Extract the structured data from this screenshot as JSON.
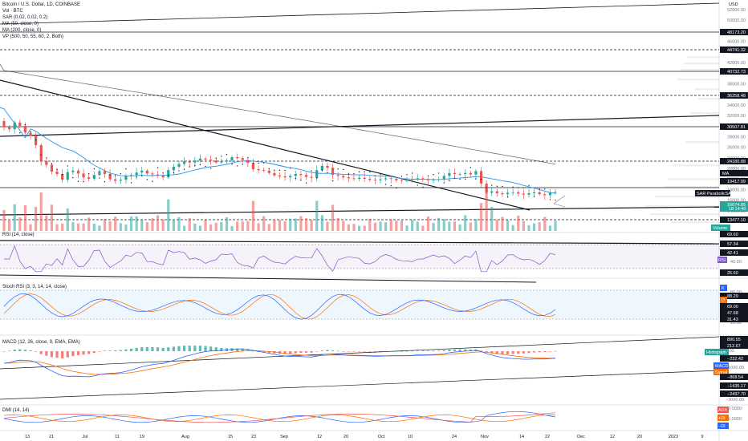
{
  "header": {
    "title": "Bitcoin / U.S. Dollar, 1D, COINBASE",
    "indicators": [
      "Vol · BTC",
      "SAR (0.02, 0.02, 0.2)",
      "MA (50, close, 0)",
      "MA (200, close, 0)",
      "VP (500, 50, 55, 60, 2, Both)"
    ],
    "currency": "USD"
  },
  "panes": {
    "rsi": "RSI (14, close)",
    "stoch": "Stoch RSI (3, 3, 14, 14, close)",
    "macd": "MACD (12, 26, close, 9, EMA, EMA)",
    "dmi": "DMI (14, 14)"
  },
  "axis": {
    "price_ticks": [
      "52000.00",
      "50000.00",
      "48000.00",
      "46000.00",
      "44000.00",
      "42000.00",
      "40000.00",
      "38000.00",
      "36000.00",
      "34000.00",
      "32000.00",
      "30000.00",
      "28000.00",
      "26000.00",
      "24000.00",
      "22000.00",
      "20000.00",
      "18000.00",
      "16000.00",
      "14000.00",
      "12000.00"
    ],
    "rsi_ticks": [
      "80.00",
      "40.00"
    ],
    "stoch_ticks": [
      "80.00",
      "20.00"
    ],
    "macd_ticks": [
      "0.00",
      "−1000.00",
      "−2000.00",
      "−3000.00"
    ],
    "dmi_ticks": [
      "50.0000",
      "25.0000"
    ],
    "time_ticks": [
      "13",
      "21",
      "Jul",
      "11",
      "19",
      "Aug",
      "15",
      "23",
      "Sep",
      "12",
      "20",
      "Oct",
      "10",
      "24",
      "Nov",
      "14",
      "22",
      "Dec",
      "12",
      "20",
      "2023",
      "9"
    ]
  },
  "tags": {
    "price_levels": [
      {
        "value": "48173.20",
        "color": "#131722"
      },
      {
        "value": "44741.32",
        "color": "#131722"
      },
      {
        "value": "40732.73",
        "color": "#131722"
      },
      {
        "value": "36258.48",
        "color": "#131722"
      },
      {
        "value": "30507.81",
        "color": "#131722"
      },
      {
        "value": "24180.88",
        "color": "#131722"
      },
      {
        "value": "19417.09",
        "color": "#131722"
      },
      {
        "value": "13477.10",
        "color": "#131722"
      },
      {
        "value": "16674.85",
        "color": "#26a69a"
      }
    ],
    "ma_label": "MA",
    "sar_label": "SAR ParabolicSAR",
    "countdown": "18:14:40",
    "volume_label": "Volume",
    "rsi_levels": [
      "69.60",
      "57.34",
      "42.41",
      "25.60"
    ],
    "rsi_current": "RSI",
    "stoch_levels": [
      "88.29",
      "69.00",
      "47.68",
      "31.43"
    ],
    "stoch_k": "K",
    "stoch_d": "D",
    "macd_levels": [
      "890.55",
      "212.67",
      "−232.42",
      "−868.54",
      "−1435.17",
      "−2497.70"
    ],
    "macd_tags": [
      "Histogram",
      "MACD",
      "Signal"
    ],
    "dmi_tags": [
      "ADX",
      "+DI",
      "−DI"
    ]
  },
  "colors": {
    "up": "#26a69a",
    "down": "#ef5350",
    "ma50": "#2196f3",
    "ma200": "#131722",
    "rsi": "#7e57c2",
    "stoch_k": "#2962ff",
    "stoch_d": "#ff6d00",
    "adx": "#ef5350",
    "plus_di": "#ff6d00",
    "minus_di": "#2962ff"
  },
  "chart_data": {
    "type": "candlestick",
    "symbol": "BTCUSD",
    "interval": "1D",
    "ylim": [
      12000,
      53000
    ],
    "time_range": [
      "June",
      "January 2023"
    ],
    "close": [
      30200,
      29800,
      31200,
      30500,
      29100,
      28400,
      26500,
      23200,
      22400,
      21000,
      20500,
      19300,
      20900,
      21200,
      20600,
      19800,
      19500,
      20300,
      21100,
      20500,
      19400,
      19100,
      19300,
      20100,
      20300,
      20800,
      21200,
      20600,
      20400,
      20200,
      19800,
      21300,
      22000,
      22600,
      23100,
      22900,
      23300,
      23700,
      23500,
      23300,
      22900,
      23100,
      23300,
      24000,
      23800,
      23400,
      22800,
      21500,
      21300,
      21200,
      20700,
      20200,
      20000,
      19800,
      20100,
      20500,
      20300,
      19900,
      19700,
      21300,
      22200,
      21800,
      20300,
      20100,
      19800,
      19600,
      19500,
      19700,
      19500,
      19300,
      19200,
      19400,
      19600,
      19500,
      19200,
      19100,
      19300,
      19400,
      19600,
      19400,
      19200,
      19300,
      19400,
      20100,
      20700,
      20500,
      20500,
      20700,
      20400,
      21100,
      18500,
      16600,
      16900,
      16500,
      16300,
      16600,
      16700,
      16400,
      16200,
      16500,
      16700,
      16300,
      16100,
      16600,
      16700
    ]
  }
}
